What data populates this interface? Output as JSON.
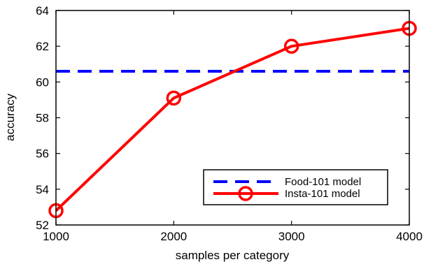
{
  "chart_data": {
    "type": "line",
    "title": "",
    "xlabel": "samples per category",
    "ylabel": "accuracy",
    "xlim": [
      1000,
      4000
    ],
    "ylim": [
      52,
      64
    ],
    "xticks": [
      1000,
      2000,
      3000,
      4000
    ],
    "xtick_labels": [
      "1000",
      "2000",
      "3000",
      "4000"
    ],
    "yticks": [
      52,
      54,
      56,
      58,
      60,
      62,
      64
    ],
    "ytick_labels": [
      "52",
      "54",
      "56",
      "58",
      "60",
      "62",
      "64"
    ],
    "grid": false,
    "legend_position": "bottom-right",
    "series": [
      {
        "name": "Food-101 model",
        "style": "dashed",
        "color": "#0000ff",
        "marker": "none",
        "x": [
          1000,
          4000
        ],
        "values": [
          60.6,
          60.6
        ]
      },
      {
        "name": "Insta-101 model",
        "style": "solid",
        "color": "#ff0000",
        "marker": "circle",
        "x": [
          1000,
          2000,
          3000,
          4000
        ],
        "values": [
          52.8,
          59.1,
          62.0,
          63.0
        ]
      }
    ]
  }
}
